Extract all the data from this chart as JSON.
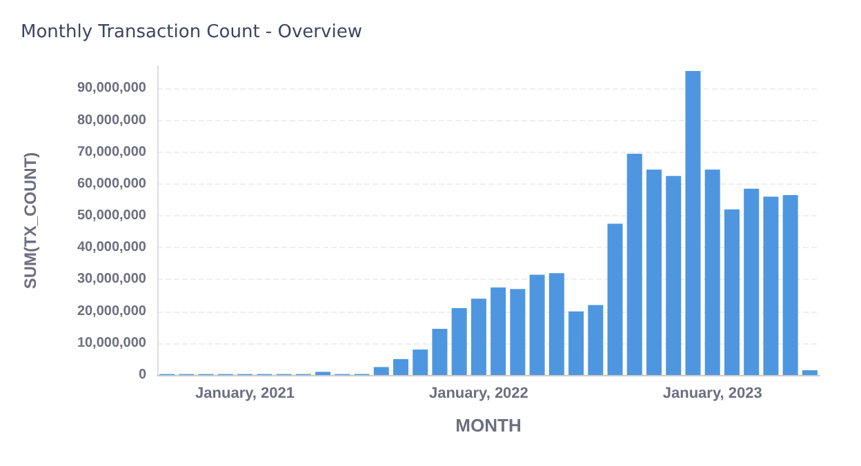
{
  "chart_data": {
    "type": "bar",
    "title": "Monthly Transaction Count - Overview",
    "xlabel": "MONTH",
    "ylabel": "SUM(TX_COUNT)",
    "categories": [
      null,
      null,
      null,
      null,
      "January, 2021",
      null,
      null,
      null,
      null,
      null,
      null,
      null,
      null,
      null,
      null,
      null,
      "January, 2022",
      null,
      null,
      null,
      null,
      null,
      null,
      null,
      null,
      null,
      null,
      null,
      "January, 2023",
      null,
      null,
      null,
      null,
      null
    ],
    "series": [
      {
        "color": "#4e97e0",
        "values": [
          300000,
          300000,
          300000,
          300000,
          300000,
          300000,
          300000,
          300000,
          1000000,
          300000,
          300000,
          2500000,
          5000000,
          8000000,
          14500000,
          21000000,
          24000000,
          27500000,
          27000000,
          31500000,
          32000000,
          20000000,
          22000000,
          47500000,
          69500000,
          64500000,
          62500000,
          95500000,
          64500000,
          52000000,
          58500000,
          56000000,
          56500000,
          1500000
        ]
      }
    ],
    "ylim": [
      0,
      97000000
    ],
    "yticks": [
      {
        "value": 0,
        "label": "0"
      },
      {
        "value": 10000000,
        "label": "10,000,000"
      },
      {
        "value": 20000000,
        "label": "20,000,000"
      },
      {
        "value": 30000000,
        "label": "30,000,000"
      },
      {
        "value": 40000000,
        "label": "40,000,000"
      },
      {
        "value": 50000000,
        "label": "50,000,000"
      },
      {
        "value": 60000000,
        "label": "60,000,000"
      },
      {
        "value": 70000000,
        "label": "70,000,000"
      },
      {
        "value": 80000000,
        "label": "80,000,000"
      },
      {
        "value": 90000000,
        "label": "90,000,000"
      }
    ],
    "grid": "y"
  }
}
